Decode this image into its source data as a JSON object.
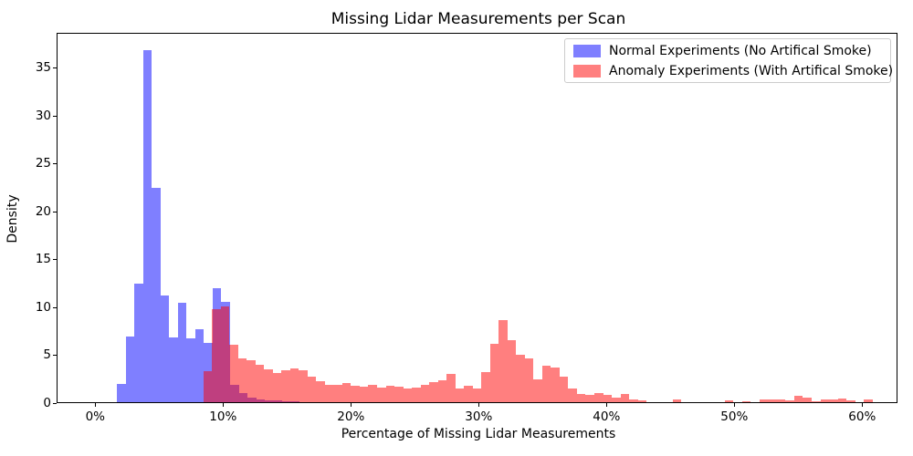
{
  "title": "Missing Lidar Measurements per Scan",
  "axes": {
    "xlabel": "Percentage of Missing Lidar Measurements",
    "ylabel": "Density",
    "x_ticks": [
      {
        "value": 0,
        "label": "0%"
      },
      {
        "value": 10,
        "label": "10%"
      },
      {
        "value": 20,
        "label": "20%"
      },
      {
        "value": 30,
        "label": "30%"
      },
      {
        "value": 40,
        "label": "40%"
      },
      {
        "value": 50,
        "label": "50%"
      },
      {
        "value": 60,
        "label": "60%"
      }
    ],
    "y_ticks": [
      0,
      5,
      10,
      15,
      20,
      25,
      30,
      35
    ]
  },
  "legend": {
    "items": [
      {
        "label": "Normal Experiments (No Artifical Smoke)",
        "css_color": "rgba(0,0,255,0.5)",
        "hex_on_white": "#8080ff"
      },
      {
        "label": "Anomaly Experiments (With Artifical Smoke)",
        "css_color": "rgba(255,0,0,0.5)",
        "hex_on_white": "#ff8080"
      }
    ]
  },
  "colors": {
    "normal_fill": "#0000ff",
    "anomaly_fill": "#ff0000",
    "overlap_on_white": "#bf4080",
    "alpha": 0.5,
    "spine": "#000000",
    "legend_border": "#cccccc"
  },
  "chart_data": {
    "type": "bar",
    "subtype": "overlaid-density-histograms",
    "title": "Missing Lidar Measurements per Scan",
    "xlabel": "Percentage of Missing Lidar Measurements",
    "ylabel": "Density",
    "xlim": [
      -3.0,
      62.8
    ],
    "ylim": [
      0,
      38.6
    ],
    "grid": false,
    "legend_position": "upper right",
    "series": [
      {
        "name": "Normal Experiments (No Artifical Smoke)",
        "color": "#0000ff",
        "alpha": 0.5,
        "bin_start_pct": 1.71,
        "bin_width_pct": 0.68,
        "densities": [
          1.9,
          6.9,
          12.4,
          36.8,
          22.4,
          11.1,
          6.8,
          10.4,
          6.7,
          7.6,
          6.2,
          11.9,
          10.5,
          1.8,
          0.95,
          0.5,
          0.25,
          0.2,
          0.15,
          0.1,
          0.1
        ]
      },
      {
        "name": "Anomaly Experiments (With Artifical Smoke)",
        "color": "#ff0000",
        "alpha": 0.5,
        "bin_start_pct": 8.45,
        "bin_width_pct": 0.68,
        "densities": [
          3.2,
          9.7,
          10.0,
          6.0,
          4.6,
          4.35,
          3.9,
          3.4,
          3.05,
          3.3,
          3.55,
          3.35,
          2.65,
          2.2,
          1.8,
          1.85,
          2.0,
          1.75,
          1.65,
          1.8,
          1.5,
          1.75,
          1.6,
          1.45,
          1.5,
          1.85,
          2.05,
          2.3,
          3.0,
          1.45,
          1.7,
          1.45,
          3.1,
          6.05,
          8.55,
          6.5,
          5.0,
          4.6,
          2.4,
          3.85,
          3.6,
          2.7,
          1.45,
          0.85,
          0.75,
          1.0,
          0.75,
          0.5,
          0.9,
          0.3,
          0.15,
          0,
          0,
          0,
          0.25,
          0,
          0,
          0,
          0,
          0,
          0.17,
          0,
          0.1,
          0,
          0.3,
          0.3,
          0.3,
          0.2,
          0.7,
          0.5,
          0.1,
          0.25,
          0.25,
          0.35,
          0.2,
          0,
          0.3,
          0
        ]
      }
    ]
  }
}
